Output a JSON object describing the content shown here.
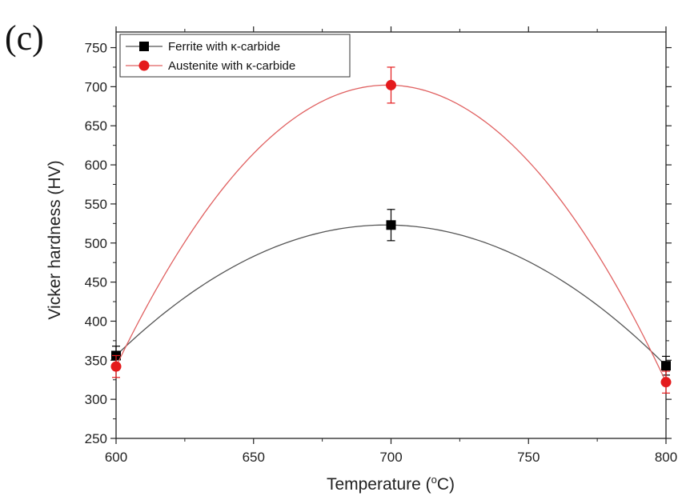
{
  "chart_data": {
    "type": "line",
    "panel_label": "(c)",
    "xlabel": "Temperature (",
    "xlabel_sup": "o",
    "xlabel_suffix": "C)",
    "ylabel": "Vicker hardness (HV)",
    "xlim": [
      600,
      800
    ],
    "ylim": [
      250,
      770
    ],
    "x_ticks": [
      600,
      650,
      700,
      750,
      800
    ],
    "y_ticks": [
      250,
      300,
      350,
      400,
      450,
      500,
      550,
      600,
      650,
      700,
      750
    ],
    "legend_position": "top-left",
    "grid": false,
    "series": [
      {
        "name": "Ferrite with κ-carbide",
        "marker": "square",
        "color": "#000000",
        "line_color": "#555555",
        "x": [
          600,
          700,
          800
        ],
        "y": [
          356,
          523,
          343
        ],
        "error": [
          12,
          20,
          12
        ]
      },
      {
        "name": "Austenite with κ-carbide",
        "marker": "circle",
        "color": "#e41a1c",
        "line_color": "#e06060",
        "x": [
          600,
          700,
          800
        ],
        "y": [
          342,
          702,
          322
        ],
        "error": [
          14,
          23,
          14
        ]
      }
    ]
  }
}
